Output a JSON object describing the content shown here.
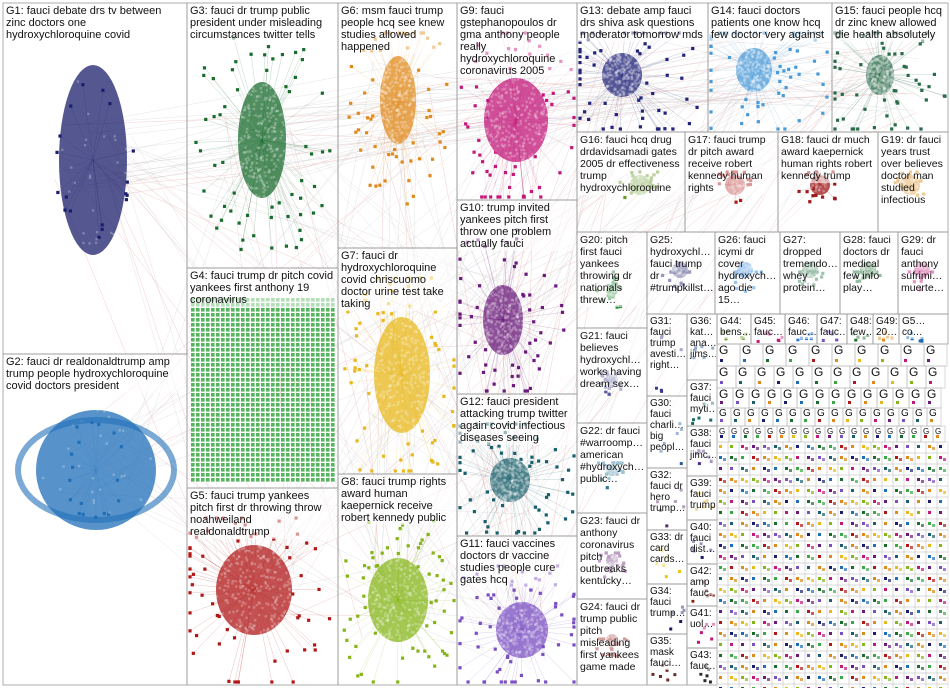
{
  "groups": [
    {
      "id": "G1",
      "label": "G1: fauci debate drs tv between zinc doctors one hydroxychloroquine covid",
      "color": "#1b1f6b"
    },
    {
      "id": "G2",
      "label": "G2: fauci dr realdonaldtrump amp trump people hydroxychloroquine covid doctors president",
      "color": "#1f6fb8"
    },
    {
      "id": "G3",
      "label": "G3: fauci dr trump public president under misleading circumstances twitter tells",
      "color": "#1a6b2e"
    },
    {
      "id": "G4",
      "label": "G4: fauci trump dr pitch covid yankees first anthony 19 coronavirus",
      "color": "#39a845"
    },
    {
      "id": "G5",
      "label": "G5: fauci trump yankees pitch first dr throwing throw noahweiland realdonaldtrump",
      "color": "#b01818"
    },
    {
      "id": "G6",
      "label": "G6: msm fauci trump people hcq see knew studies allowed happened",
      "color": "#e08a1c"
    },
    {
      "id": "G7",
      "label": "G7: fauci dr hydroxychloroquine covid chriscuomo doctor urine test take taking",
      "color": "#e8b81c"
    },
    {
      "id": "G8",
      "label": "G8: fauci trump rights award human kaepernick receive robert kennedy public",
      "color": "#86b51a"
    },
    {
      "id": "G9",
      "label": "G9: fauci gstephanopoulos dr gma anthony people really hydroxychloroquine coronavirus 2005",
      "color": "#c2187a"
    },
    {
      "id": "G10",
      "label": "G10: trump invited yankees pitch first throw one problem actually fauci",
      "color": "#6a1a7a"
    },
    {
      "id": "G11",
      "label": "G11: fauci vaccines doctors dr vaccine studies people cure gates hcq",
      "color": "#7a4fc2"
    },
    {
      "id": "G12",
      "label": "G12: fauci president attacking trump twitter again covid infectious diseases seeing",
      "color": "#1a5f6b"
    },
    {
      "id": "G13",
      "label": "G13: debate amp fauci drs shiva ask questions moderator tomorrow mds",
      "color": "#22247a"
    },
    {
      "id": "G14",
      "label": "G14: fauci doctors patients one know hcq few doctor very against",
      "color": "#4a9ad8"
    },
    {
      "id": "G15",
      "label": "G15: fauci people hcq dr zinc knew allowed die health absolutely",
      "color": "#2a6b4a"
    },
    {
      "id": "G16",
      "label": "G16: fauci hcq drug drdavidsamadi gates 2005 dr effectiveness trump hydroxychloroquine",
      "color": "#6a9a2a"
    },
    {
      "id": "G17",
      "label": "G17: fauci trump dr pitch award receive robert kennedy human rights",
      "color": "#b01818"
    },
    {
      "id": "G18",
      "label": "G18: fauci dr much award kaepernick human rights robert kennedy trump",
      "color": "#a01a1a"
    },
    {
      "id": "G19",
      "label": "G19: dr fauci years trust over believes doctor man studied infectious",
      "color": "#d88a1a"
    },
    {
      "id": "G20",
      "label": "G20: pitch first fauci yankees throwing dr nationals threw…",
      "color": "#2a8a3a"
    },
    {
      "id": "G21",
      "label": "G21: fauci believes hydroxychl… works having dream sex…",
      "color": "#5a5a9a"
    },
    {
      "id": "G22",
      "label": "G22: dr fauci #warroomp… american #hydroxych… public…",
      "color": "#2a7a9a"
    },
    {
      "id": "G23",
      "label": "G23: fauci dr anthony coronavirus pitch outbreaks kentucky…",
      "color": "#6a2a7a"
    },
    {
      "id": "G24",
      "label": "G24: fauci dr trump public pitch misleading first yankees game made",
      "color": "#9a2a2a"
    },
    {
      "id": "G25",
      "label": "G25: hydroxychl… fauci trump dr #trumpkillst…",
      "color": "#1a1a6a"
    },
    {
      "id": "G26",
      "label": "G26: fauci icymi dr cover hydroxych… ago die 15…",
      "color": "#1a7ad8"
    },
    {
      "id": "G27",
      "label": "G27: dropped tremendo… whey protein…",
      "color": "#2a7a4a"
    },
    {
      "id": "G28",
      "label": "G28: fauci doctors dr medical few info play…",
      "color": "#1a6a2a"
    },
    {
      "id": "G29",
      "label": "G29: dr fauci anthony sufrimi… muerte…",
      "color": "#c2187a"
    },
    {
      "id": "G30",
      "label": "G30: fauci charli… big peopl…",
      "color": "#2a5a9a"
    },
    {
      "id": "G31",
      "label": "G31: fauci trump avesti… right…",
      "color": "#3a3a8a"
    },
    {
      "id": "G32",
      "label": "G32: fauci dr hero trump…",
      "color": "#5a2a6a"
    },
    {
      "id": "G33",
      "label": "G33: dr card cards…",
      "color": "#e8c81c"
    },
    {
      "id": "G34",
      "label": "G34: fauci trump…",
      "color": "#1a1a6a"
    },
    {
      "id": "G35",
      "label": "G35: mask fauci…",
      "color": "#6a2a2a"
    },
    {
      "id": "G36",
      "label": "G36: kat… ana… jims…",
      "color": "#1a4a8a"
    },
    {
      "id": "G37",
      "label": "G37: fauci myti…",
      "color": "#1a6a6a"
    },
    {
      "id": "G38",
      "label": "G38: fauci jimc…",
      "color": "#4a2a8a"
    },
    {
      "id": "G39",
      "label": "G39: fauci trump…",
      "color": "#d8a81c"
    },
    {
      "id": "G40",
      "label": "G40: fauci dist…",
      "color": "#1a1a6a"
    },
    {
      "id": "G41",
      "label": "G41: uol…",
      "color": "#c2187a"
    },
    {
      "id": "G42",
      "label": "G42: amp fauc…",
      "color": "#9a1a1a"
    },
    {
      "id": "G43",
      "label": "G43: fauc…",
      "color": "#2a2a2a"
    },
    {
      "id": "G44",
      "label": "G44: bens…",
      "color": "#6a9a2a"
    },
    {
      "id": "G45",
      "label": "G45: fauc…",
      "color": "#c2187a"
    },
    {
      "id": "G46",
      "label": "G46: fauc…",
      "color": "#2a7ad8"
    },
    {
      "id": "G47",
      "label": "G47: fauc…",
      "color": "#7a4fc2"
    },
    {
      "id": "G48",
      "label": "G48: few…",
      "color": "#1a6a2a"
    },
    {
      "id": "G49",
      "label": "G49: 20…",
      "color": "#e08a1c"
    },
    {
      "id": "G50",
      "label": "G5… co…",
      "color": "#1a6ab8"
    }
  ],
  "grid_letter": "G"
}
